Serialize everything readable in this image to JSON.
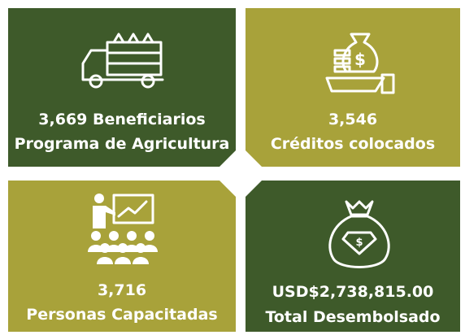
{
  "tiles": [
    {
      "lines": [
        "3,669 Beneficiarios",
        "Programa de Agricultura"
      ]
    },
    {
      "lines": [
        "3,546",
        "Créditos colocados"
      ]
    },
    {
      "lines": [
        "3,716",
        "Personas Capacitadas"
      ]
    },
    {
      "lines": [
        "USD$2,738,815.00",
        "Total Desembolsado"
      ]
    }
  ]
}
